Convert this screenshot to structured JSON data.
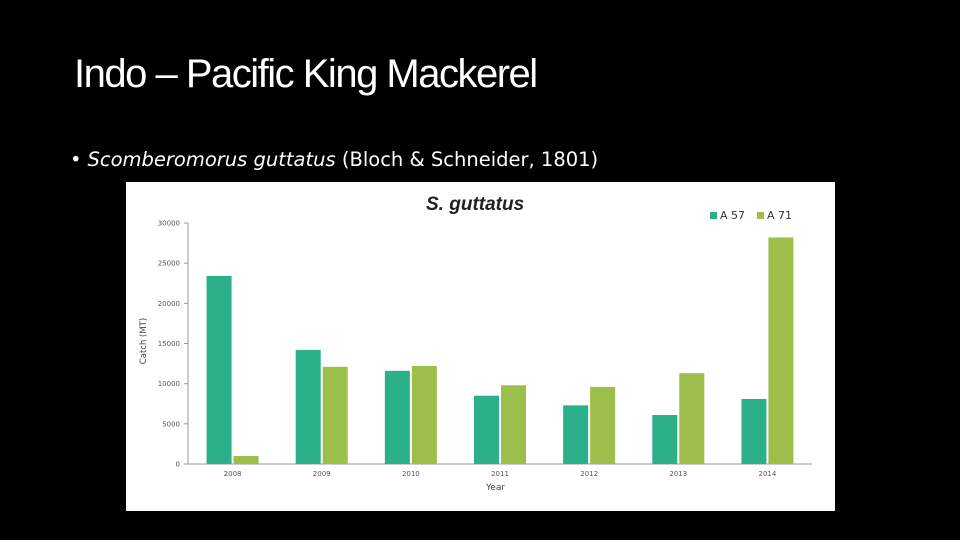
{
  "slide": {
    "title": "Indo – Pacific King Mackerel",
    "bullet": {
      "symbol": "•",
      "species": "Scomberomorus guttatus",
      "authority": " (Bloch & Schneider, 1801)"
    }
  },
  "colors": {
    "background": "#000000",
    "series_a57": "#2bb08a",
    "series_a71": "#9bbf4a"
  },
  "chart_data": {
    "type": "bar",
    "title": "S. guttatus",
    "xlabel": "Year",
    "ylabel": "Catch (MT)",
    "categories": [
      "2008",
      "2009",
      "2010",
      "2011",
      "2012",
      "2013",
      "2014"
    ],
    "series": [
      {
        "name": "A 57",
        "values": [
          23400,
          14200,
          11600,
          8500,
          7300,
          6100,
          8100
        ]
      },
      {
        "name": "A 71",
        "values": [
          1000,
          12100,
          12200,
          9800,
          9600,
          11300,
          28200
        ]
      }
    ],
    "y_ticks": [
      "0",
      "5000",
      "10000",
      "15000",
      "20000",
      "25000",
      "30000"
    ],
    "ylim": [
      0,
      30000
    ],
    "legend_position": "top-right",
    "grid": false
  }
}
